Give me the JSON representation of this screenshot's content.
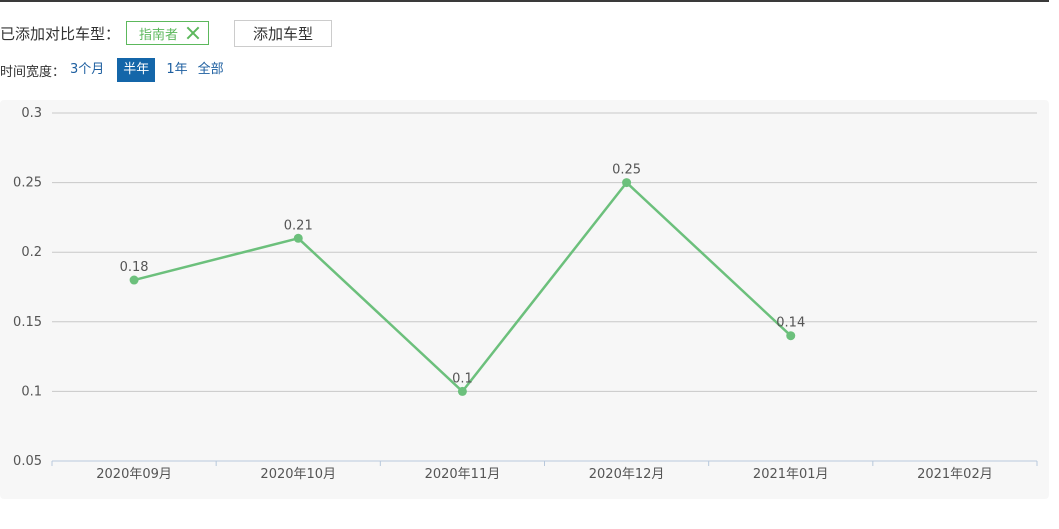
{
  "compare": {
    "label": "已添加对比车型：",
    "model_tag": "指南者",
    "add_button": "添加车型"
  },
  "range": {
    "label": "时间宽度：",
    "options": [
      "3个月",
      "半年",
      "1年",
      "全部"
    ],
    "active": "半年"
  },
  "colors": {
    "line": "#6cc07c",
    "grid": "#c8c8c8",
    "active_tab": "#1466a9",
    "link": "#1e5fa0"
  },
  "chart_data": {
    "type": "line",
    "categories": [
      "2020年09月",
      "2020年10月",
      "2020年11月",
      "2020年12月",
      "2021年01月",
      "2021年02月"
    ],
    "series": [
      {
        "values": [
          0.18,
          0.21,
          0.1,
          0.25,
          0.14,
          null
        ]
      }
    ],
    "y_ticks": [
      "0.05",
      "0.1",
      "0.15",
      "0.2",
      "0.25",
      "0.3"
    ],
    "ylim": [
      0.05,
      0.3
    ],
    "grid": true,
    "data_labels": true
  }
}
